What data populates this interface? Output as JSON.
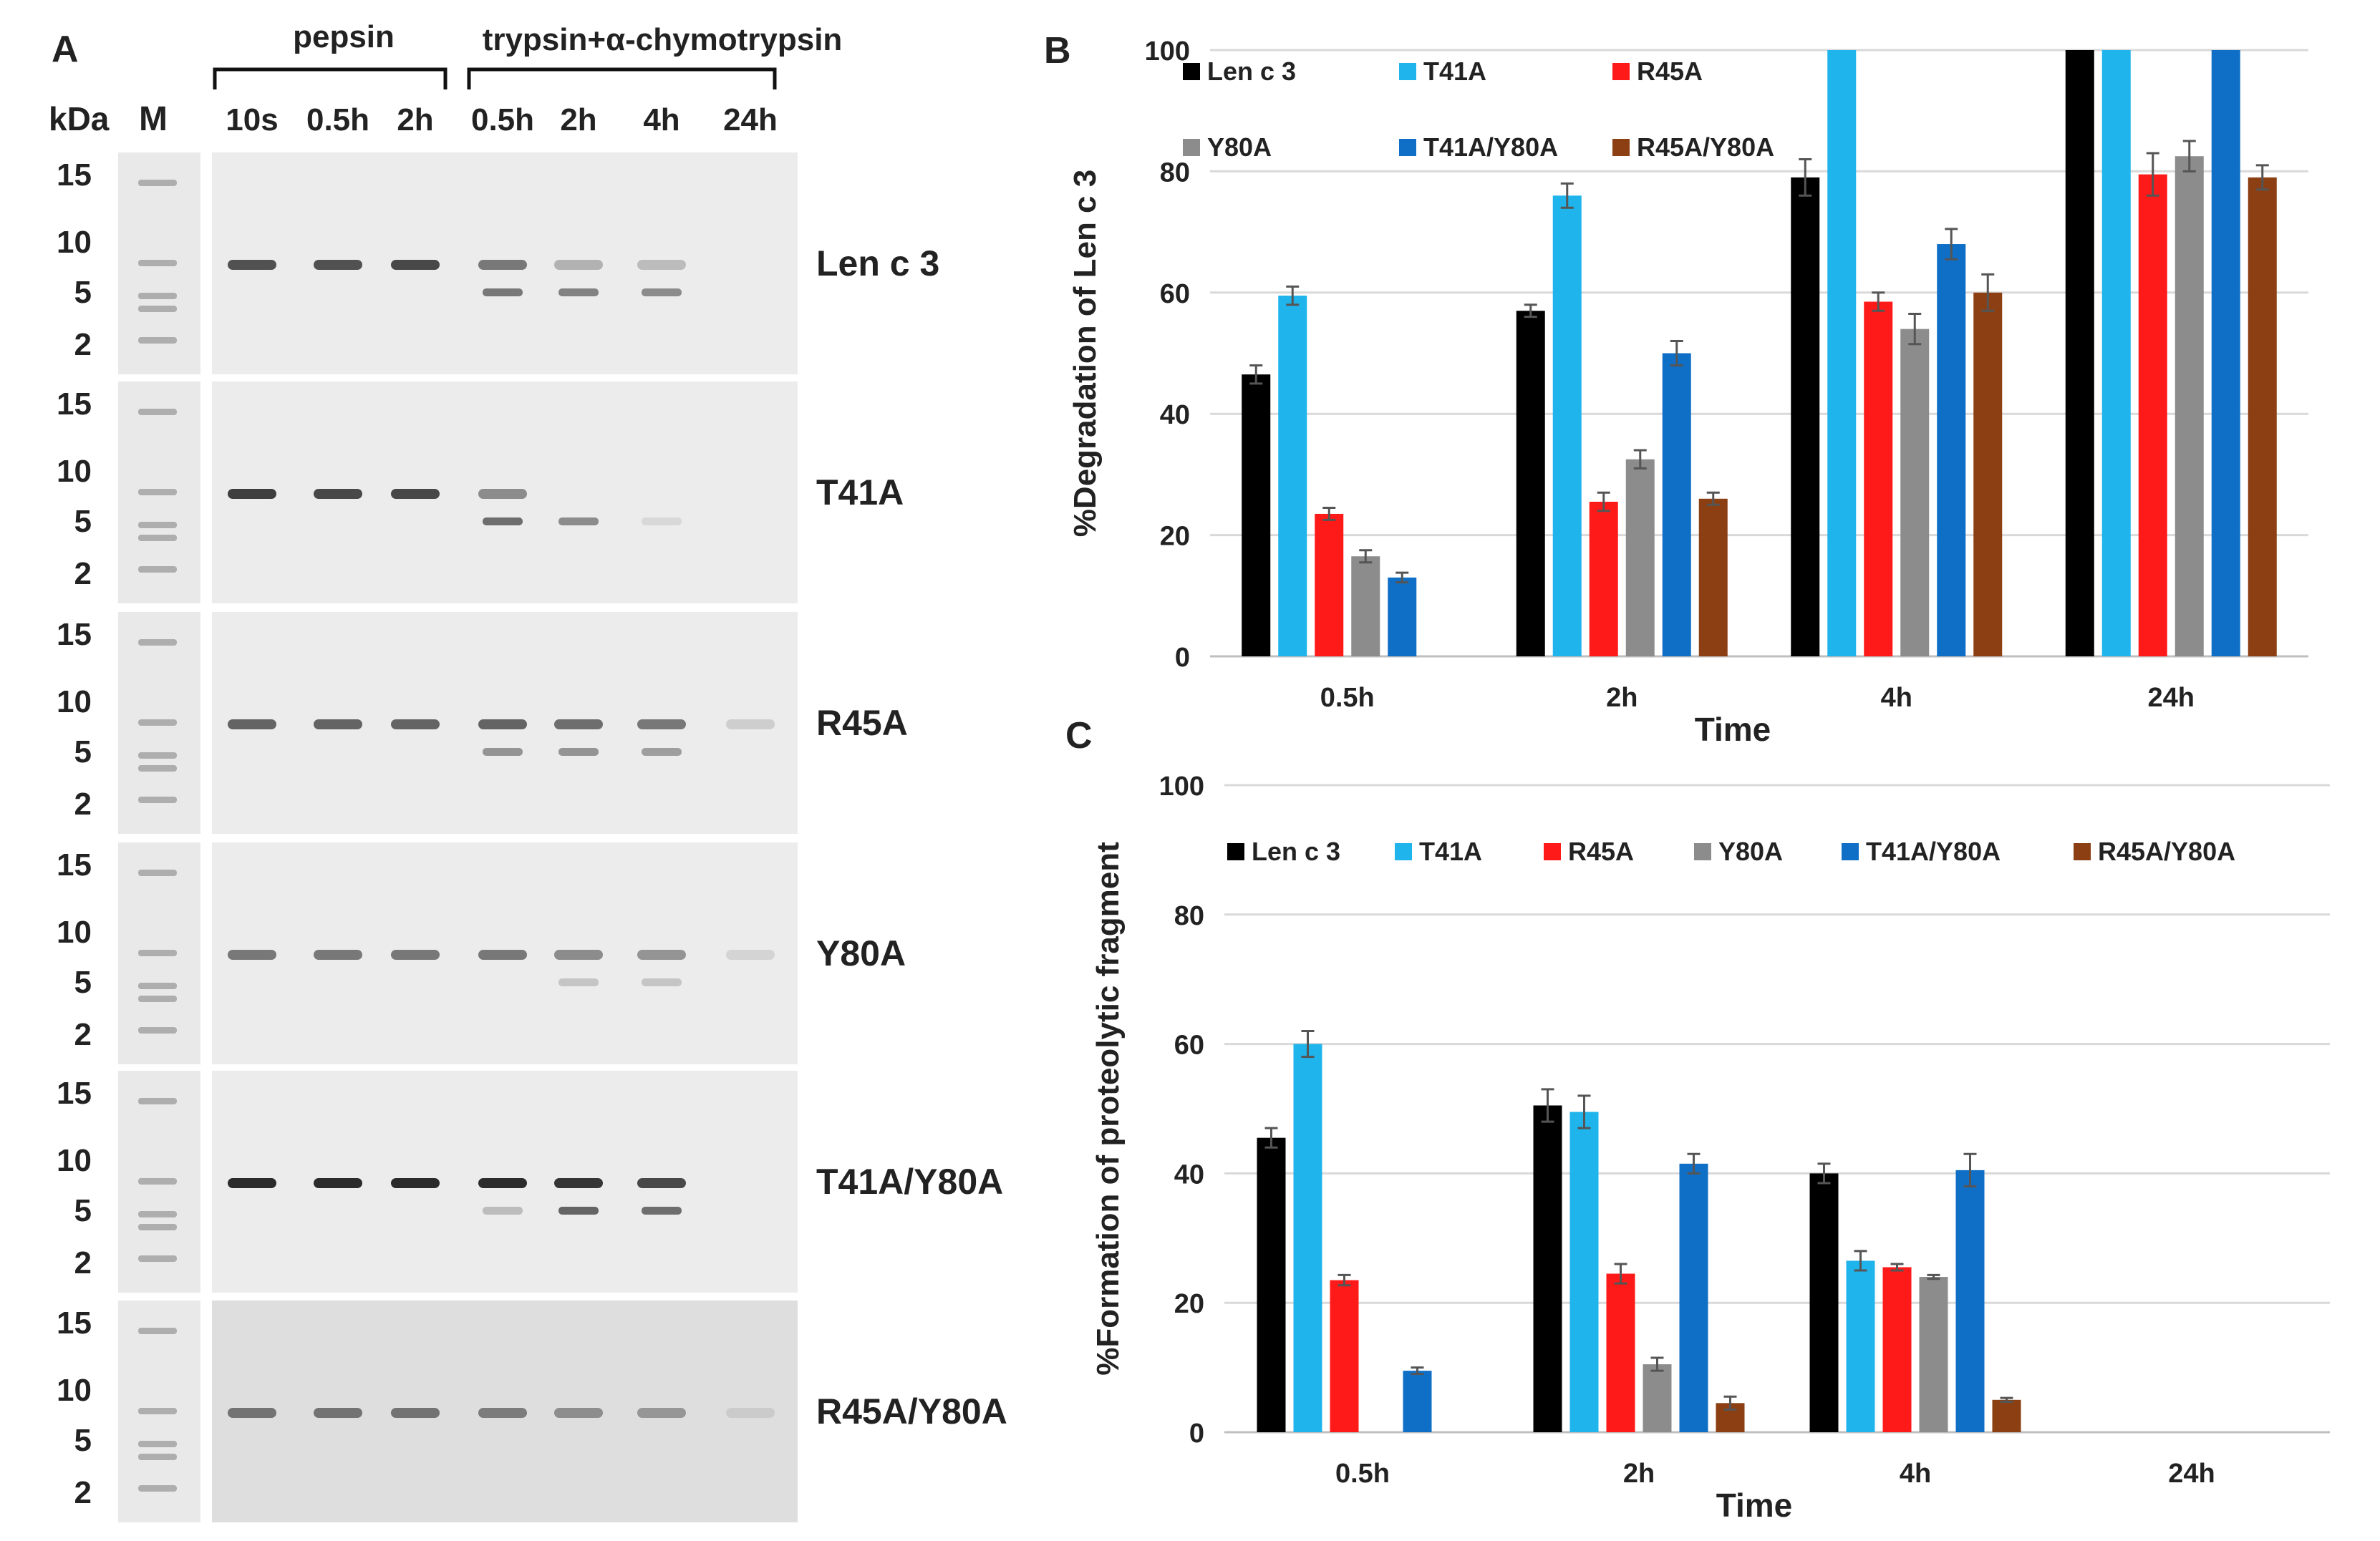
{
  "panel_labels": {
    "a": "A",
    "b": "B",
    "c": "C"
  },
  "gel": {
    "header_kda": "kDa",
    "header_marker": "M",
    "group_pepsin": "pepsin",
    "group_trypsin": "trypsin+α-chymotrypsin",
    "lanes": [
      "10s",
      "0.5h",
      "2h",
      "0.5h",
      "2h",
      "4h",
      "24h"
    ],
    "kda_ticks": [
      "15",
      "10",
      "5",
      "2"
    ],
    "rows": [
      {
        "name": "Len c 3",
        "main": [
          0.8,
          0.8,
          0.85,
          0.6,
          0.3,
          0.25,
          0
        ],
        "frag": [
          0,
          0,
          0,
          0.6,
          0.55,
          0.5,
          0
        ]
      },
      {
        "name": "T41A",
        "main": [
          0.9,
          0.85,
          0.85,
          0.5,
          0,
          0,
          0
        ],
        "frag": [
          0,
          0,
          0,
          0.65,
          0.5,
          0.1,
          0
        ]
      },
      {
        "name": "R45A",
        "main": [
          0.7,
          0.7,
          0.7,
          0.7,
          0.65,
          0.6,
          0.15
        ],
        "frag": [
          0,
          0,
          0,
          0.45,
          0.45,
          0.4,
          0
        ]
      },
      {
        "name": "Y80A",
        "main": [
          0.6,
          0.6,
          0.6,
          0.6,
          0.5,
          0.45,
          0.12
        ],
        "frag": [
          0,
          0,
          0,
          0,
          0.2,
          0.2,
          0
        ]
      },
      {
        "name": "T41A/Y80A",
        "main": [
          1,
          1,
          1,
          1,
          0.95,
          0.85,
          0
        ],
        "frag": [
          0,
          0,
          0,
          0.25,
          0.7,
          0.65,
          0
        ]
      },
      {
        "name": "R45A/Y80A",
        "main": [
          0.6,
          0.6,
          0.6,
          0.55,
          0.45,
          0.4,
          0.1
        ],
        "frag": [
          0,
          0,
          0,
          0,
          0,
          0,
          0
        ]
      }
    ]
  },
  "colors": {
    "Len c 3": "#000000",
    "T41A": "#1fb4ec",
    "R45A": "#ff1a1a",
    "Y80A": "#8c8c8c",
    "T41A/Y80A": "#0f6fc6",
    "R45A/Y80A": "#8b3f12"
  },
  "chart_data": [
    {
      "panel": "B",
      "type": "bar",
      "title": "",
      "xlabel": "Time",
      "ylabel": "%Degradation of Len c 3",
      "ylim": [
        0,
        100
      ],
      "yticks": [
        "0",
        "20",
        "40",
        "60",
        "80",
        "100"
      ],
      "grid": true,
      "legend_position": "top",
      "categories": [
        "0.5h",
        "2h",
        "4h",
        "24h"
      ],
      "series": [
        {
          "name": "Len c 3",
          "values": [
            46.5,
            57,
            79,
            100
          ],
          "errors": [
            1.5,
            1,
            3,
            0
          ]
        },
        {
          "name": "T41A",
          "values": [
            59.5,
            76,
            100,
            100
          ],
          "errors": [
            1.5,
            2,
            0,
            0
          ]
        },
        {
          "name": "R45A",
          "values": [
            23.5,
            25.5,
            58.5,
            79.5
          ],
          "errors": [
            1,
            1.5,
            1.5,
            3.5
          ]
        },
        {
          "name": "Y80A",
          "values": [
            16.5,
            32.5,
            54,
            82.5
          ],
          "errors": [
            1,
            1.5,
            2.5,
            2.5
          ]
        },
        {
          "name": "T41A/Y80A",
          "values": [
            13,
            50,
            68,
            100
          ],
          "errors": [
            0.8,
            2,
            2.5,
            0
          ]
        },
        {
          "name": "R45A/Y80A",
          "values": [
            null,
            26,
            60,
            79
          ],
          "errors": [
            0,
            1,
            3,
            2
          ]
        }
      ]
    },
    {
      "panel": "C",
      "type": "bar",
      "title": "",
      "xlabel": "Time",
      "ylabel": "%Formation of proteolytic fragment",
      "ylim": [
        0,
        100
      ],
      "yticks": [
        "0",
        "20",
        "40",
        "60",
        "80",
        "100"
      ],
      "grid": true,
      "legend_position": "top",
      "categories": [
        "0.5h",
        "2h",
        "4h",
        "24h"
      ],
      "series": [
        {
          "name": "Len c 3",
          "values": [
            45.5,
            50.5,
            40,
            null
          ],
          "errors": [
            1.5,
            2.5,
            1.5,
            0
          ]
        },
        {
          "name": "T41A",
          "values": [
            60,
            49.5,
            26.5,
            null
          ],
          "errors": [
            2,
            2.5,
            1.5,
            0
          ]
        },
        {
          "name": "R45A",
          "values": [
            23.5,
            24.5,
            25.5,
            null
          ],
          "errors": [
            0.8,
            1.5,
            0.5,
            0
          ]
        },
        {
          "name": "Y80A",
          "values": [
            null,
            10.5,
            24,
            null
          ],
          "errors": [
            0,
            1,
            0.3,
            0
          ]
        },
        {
          "name": "T41A/Y80A",
          "values": [
            9.5,
            41.5,
            40.5,
            null
          ],
          "errors": [
            0.5,
            1.5,
            2.5,
            0
          ]
        },
        {
          "name": "R45A/Y80A",
          "values": [
            null,
            4.5,
            5,
            null
          ],
          "errors": [
            0,
            1,
            0.3,
            0
          ]
        }
      ]
    }
  ]
}
